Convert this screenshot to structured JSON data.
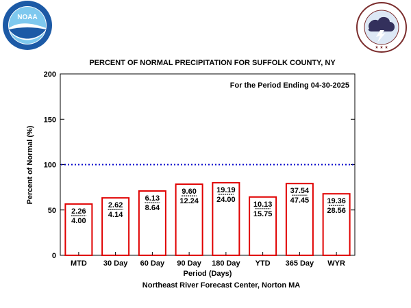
{
  "logos": {
    "noaa": {
      "text": "NOAA",
      "ring_text": "NATIONAL OCEANIC AND ATMOSPHERIC ADMINISTRATION · U.S. DEPARTMENT OF COMMERCE",
      "colors": {
        "outer": "#1c5aa6",
        "inner": "#7ec8ee",
        "bird": "#ffffff"
      }
    },
    "nws": {
      "ring_text": "NATIONAL WEATHER SERVICE",
      "colors": {
        "ring": "#7b2d2d",
        "cloud": "#33305c",
        "bolt": "#ffffff"
      }
    }
  },
  "chart_data": {
    "type": "bar",
    "title": "PERCENT OF NORMAL PRECIPITATION FOR SUFFOLK COUNTY, NY",
    "annotation": "For the Period Ending 04-30-2025",
    "xlabel": "Period (Days)",
    "ylabel": "Percent of Normal (%)",
    "source": "Northeast River Forecast Center, Norton MA",
    "ylim": [
      0,
      200
    ],
    "yticks": [
      "0",
      "50",
      "100",
      "150",
      "200"
    ],
    "reference_line": {
      "value": 100,
      "style": "dotted",
      "color": "#0000cc"
    },
    "bar_color": "#e00000",
    "categories": [
      "MTD",
      "30 Day",
      "60 Day",
      "90 Day",
      "180 Day",
      "YTD",
      "365 Day",
      "WYR"
    ],
    "values": [
      56.5,
      63.3,
      70.9,
      78.4,
      80.0,
      64.3,
      79.1,
      67.8
    ],
    "observed": [
      "2.26",
      "2.62",
      "6.13",
      "9.60",
      "19.19",
      "10.13",
      "37.54",
      "19.36"
    ],
    "normal": [
      "4.00",
      "4.14",
      "8.64",
      "12.24",
      "24.00",
      "15.75",
      "47.45",
      "28.56"
    ]
  }
}
